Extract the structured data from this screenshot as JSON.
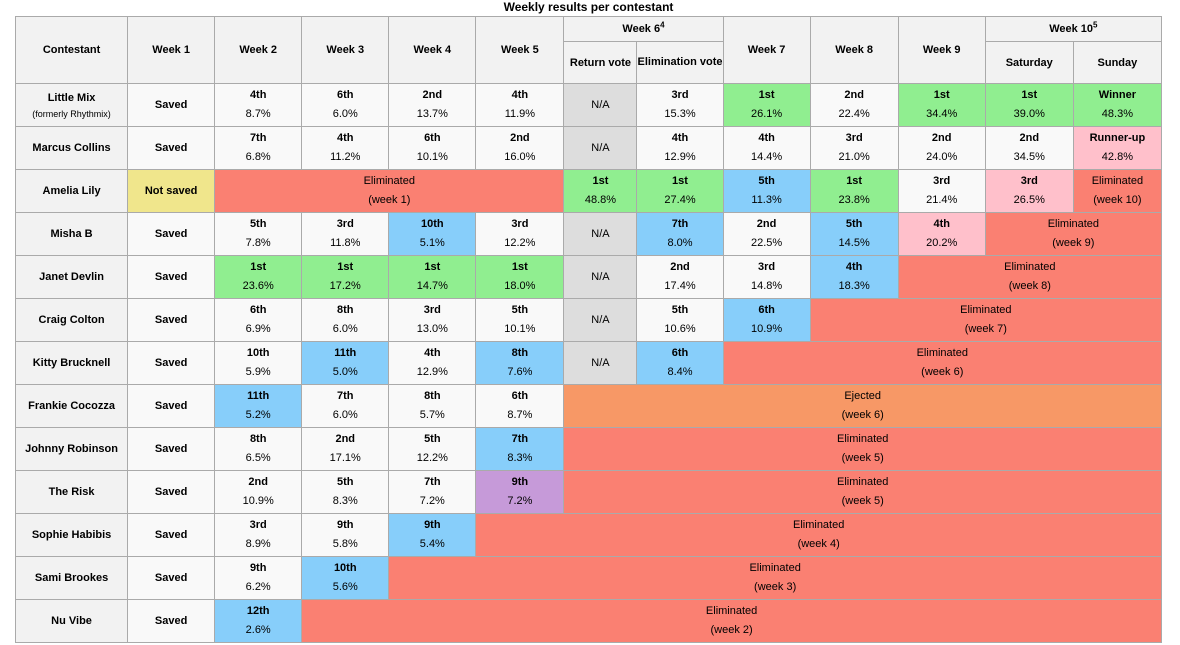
{
  "caption": "Weekly results per contestant",
  "header": {
    "contestant": "Contestant",
    "week1": "Week 1",
    "week2": "Week 2",
    "week3": "Week 3",
    "week4": "Week 4",
    "week5": "Week 5",
    "week6": "Week 6",
    "week6_note": "4",
    "week6_return": "Return vote",
    "week6_elim": "Elimination vote",
    "week7": "Week 7",
    "week8": "Week 8",
    "week9": "Week 9",
    "week10": "Week 10",
    "week10_note": "5",
    "week10_sat": "Saturday",
    "week10_sun": "Sunday"
  },
  "colors": {
    "first": "#90ee90",
    "bottom": "#87cefa",
    "runner_up": "#ffc0cb",
    "eliminated": "#fa8072",
    "ejected": "#f79866",
    "not_saved": "#f0e68c",
    "na": "#dddddd",
    "withdrew_purple": "#c69ad9"
  },
  "rows": [
    {
      "name": "Little Mix",
      "sub": "(formerly Rhythmix)",
      "cells": [
        {
          "text": "Saved",
          "style": "status"
        },
        {
          "pl": "4th",
          "pct": "8.7%",
          "style": "white"
        },
        {
          "pl": "6th",
          "pct": "6.0%",
          "style": "white"
        },
        {
          "pl": "2nd",
          "pct": "13.7%",
          "style": "white"
        },
        {
          "pl": "4th",
          "pct": "11.9%",
          "style": "white"
        },
        {
          "text": "N/A",
          "style": "na"
        },
        {
          "pl": "3rd",
          "pct": "15.3%",
          "style": "white"
        },
        {
          "pl": "1st",
          "pct": "26.1%",
          "style": "green"
        },
        {
          "pl": "2nd",
          "pct": "22.4%",
          "style": "white"
        },
        {
          "pl": "1st",
          "pct": "34.4%",
          "style": "green"
        },
        {
          "pl": "1st",
          "pct": "39.0%",
          "style": "green"
        },
        {
          "pl": "Winner",
          "pct": "48.3%",
          "style": "green"
        }
      ]
    },
    {
      "name": "Marcus Collins",
      "cells": [
        {
          "text": "Saved",
          "style": "status"
        },
        {
          "pl": "7th",
          "pct": "6.8%",
          "style": "white"
        },
        {
          "pl": "4th",
          "pct": "11.2%",
          "style": "white"
        },
        {
          "pl": "6th",
          "pct": "10.1%",
          "style": "white"
        },
        {
          "pl": "2nd",
          "pct": "16.0%",
          "style": "white"
        },
        {
          "text": "N/A",
          "style": "na"
        },
        {
          "pl": "4th",
          "pct": "12.9%",
          "style": "white"
        },
        {
          "pl": "4th",
          "pct": "14.4%",
          "style": "white"
        },
        {
          "pl": "3rd",
          "pct": "21.0%",
          "style": "white"
        },
        {
          "pl": "2nd",
          "pct": "24.0%",
          "style": "white"
        },
        {
          "pl": "2nd",
          "pct": "34.5%",
          "style": "white"
        },
        {
          "pl": "Runner-up",
          "pct": "42.8%",
          "style": "pink"
        }
      ]
    },
    {
      "name": "Amelia Lily",
      "cells": [
        {
          "text": "Not saved",
          "style": "notsaved"
        },
        {
          "elim": "Eliminated",
          "week": "(week 1)",
          "span": 4,
          "style": "elim"
        },
        {
          "pl": "1st",
          "pct": "48.8%",
          "style": "green"
        },
        {
          "pl": "1st",
          "pct": "27.4%",
          "style": "green"
        },
        {
          "pl": "5th",
          "pct": "11.3%",
          "style": "blue"
        },
        {
          "pl": "1st",
          "pct": "23.8%",
          "style": "green"
        },
        {
          "pl": "3rd",
          "pct": "21.4%",
          "style": "white"
        },
        {
          "pl": "3rd",
          "pct": "26.5%",
          "style": "pink"
        },
        {
          "elim": "Eliminated",
          "week": "(week 10)",
          "span": 1,
          "style": "elim"
        }
      ]
    },
    {
      "name": "Misha B",
      "cells": [
        {
          "text": "Saved",
          "style": "status"
        },
        {
          "pl": "5th",
          "pct": "7.8%",
          "style": "white"
        },
        {
          "pl": "3rd",
          "pct": "11.8%",
          "style": "white"
        },
        {
          "pl": "10th",
          "pct": "5.1%",
          "style": "blue"
        },
        {
          "pl": "3rd",
          "pct": "12.2%",
          "style": "white"
        },
        {
          "text": "N/A",
          "style": "na"
        },
        {
          "pl": "7th",
          "pct": "8.0%",
          "style": "blue"
        },
        {
          "pl": "2nd",
          "pct": "22.5%",
          "style": "white"
        },
        {
          "pl": "5th",
          "pct": "14.5%",
          "style": "blue"
        },
        {
          "pl": "4th",
          "pct": "20.2%",
          "style": "pink"
        },
        {
          "elim": "Eliminated",
          "week": "(week 9)",
          "span": 2,
          "style": "elim"
        }
      ]
    },
    {
      "name": "Janet Devlin",
      "cells": [
        {
          "text": "Saved",
          "style": "status"
        },
        {
          "pl": "1st",
          "pct": "23.6%",
          "style": "green"
        },
        {
          "pl": "1st",
          "pct": "17.2%",
          "style": "green"
        },
        {
          "pl": "1st",
          "pct": "14.7%",
          "style": "green"
        },
        {
          "pl": "1st",
          "pct": "18.0%",
          "style": "green"
        },
        {
          "text": "N/A",
          "style": "na"
        },
        {
          "pl": "2nd",
          "pct": "17.4%",
          "style": "white"
        },
        {
          "pl": "3rd",
          "pct": "14.8%",
          "style": "white"
        },
        {
          "pl": "4th",
          "pct": "18.3%",
          "style": "blue"
        },
        {
          "elim": "Eliminated",
          "week": "(week 8)",
          "span": 3,
          "style": "elim"
        }
      ]
    },
    {
      "name": "Craig Colton",
      "cells": [
        {
          "text": "Saved",
          "style": "status"
        },
        {
          "pl": "6th",
          "pct": "6.9%",
          "style": "white"
        },
        {
          "pl": "8th",
          "pct": "6.0%",
          "style": "white"
        },
        {
          "pl": "3rd",
          "pct": "13.0%",
          "style": "white"
        },
        {
          "pl": "5th",
          "pct": "10.1%",
          "style": "white"
        },
        {
          "text": "N/A",
          "style": "na"
        },
        {
          "pl": "5th",
          "pct": "10.6%",
          "style": "white"
        },
        {
          "pl": "6th",
          "pct": "10.9%",
          "style": "blue"
        },
        {
          "elim": "Eliminated",
          "week": "(week 7)",
          "span": 4,
          "style": "elim"
        }
      ]
    },
    {
      "name": "Kitty Brucknell",
      "cells": [
        {
          "text": "Saved",
          "style": "status"
        },
        {
          "pl": "10th",
          "pct": "5.9%",
          "style": "white"
        },
        {
          "pl": "11th",
          "pct": "5.0%",
          "style": "blue"
        },
        {
          "pl": "4th",
          "pct": "12.9%",
          "style": "white"
        },
        {
          "pl": "8th",
          "pct": "7.6%",
          "style": "blue"
        },
        {
          "text": "N/A",
          "style": "na"
        },
        {
          "pl": "6th",
          "pct": "8.4%",
          "style": "blue"
        },
        {
          "elim": "Eliminated",
          "week": "(week 6)",
          "span": 5,
          "style": "elim"
        }
      ]
    },
    {
      "name": "Frankie Cocozza",
      "cells": [
        {
          "text": "Saved",
          "style": "status"
        },
        {
          "pl": "11th",
          "pct": "5.2%",
          "style": "blue"
        },
        {
          "pl": "7th",
          "pct": "6.0%",
          "style": "white"
        },
        {
          "pl": "8th",
          "pct": "5.7%",
          "style": "white"
        },
        {
          "pl": "6th",
          "pct": "8.7%",
          "style": "white"
        },
        {
          "elim": "Ejected",
          "week": "(week 6)",
          "span": 7,
          "style": "eject"
        }
      ]
    },
    {
      "name": "Johnny Robinson",
      "cells": [
        {
          "text": "Saved",
          "style": "status"
        },
        {
          "pl": "8th",
          "pct": "6.5%",
          "style": "white"
        },
        {
          "pl": "2nd",
          "pct": "17.1%",
          "style": "white"
        },
        {
          "pl": "5th",
          "pct": "12.2%",
          "style": "white"
        },
        {
          "pl": "7th",
          "pct": "8.3%",
          "style": "blue"
        },
        {
          "elim": "Eliminated",
          "week": "(week 5)",
          "span": 7,
          "style": "elim"
        }
      ]
    },
    {
      "name": "The Risk",
      "cells": [
        {
          "text": "Saved",
          "style": "status"
        },
        {
          "pl": "2nd",
          "pct": "10.9%",
          "style": "white"
        },
        {
          "pl": "5th",
          "pct": "8.3%",
          "style": "white"
        },
        {
          "pl": "7th",
          "pct": "7.2%",
          "style": "white"
        },
        {
          "pl": "9th",
          "pct": "7.2%",
          "style": "purple"
        },
        {
          "elim": "Eliminated",
          "week": "(week 5)",
          "span": 7,
          "style": "elim"
        }
      ]
    },
    {
      "name": "Sophie Habibis",
      "cells": [
        {
          "text": "Saved",
          "style": "status"
        },
        {
          "pl": "3rd",
          "pct": "8.9%",
          "style": "white"
        },
        {
          "pl": "9th",
          "pct": "5.8%",
          "style": "white"
        },
        {
          "pl": "9th",
          "pct": "5.4%",
          "style": "blue"
        },
        {
          "elim": "Eliminated",
          "week": "(week 4)",
          "span": 8,
          "style": "elim"
        }
      ]
    },
    {
      "name": "Sami Brookes",
      "cells": [
        {
          "text": "Saved",
          "style": "status"
        },
        {
          "pl": "9th",
          "pct": "6.2%",
          "style": "white"
        },
        {
          "pl": "10th",
          "pct": "5.6%",
          "style": "blue"
        },
        {
          "elim": "Eliminated",
          "week": "(week 3)",
          "span": 9,
          "style": "elim"
        }
      ]
    },
    {
      "name": "Nu Vibe",
      "cells": [
        {
          "text": "Saved",
          "style": "status"
        },
        {
          "pl": "12th",
          "pct": "2.6%",
          "style": "blue"
        },
        {
          "elim": "Eliminated",
          "week": "(week 2)",
          "span": 10,
          "style": "elim"
        }
      ]
    }
  ]
}
